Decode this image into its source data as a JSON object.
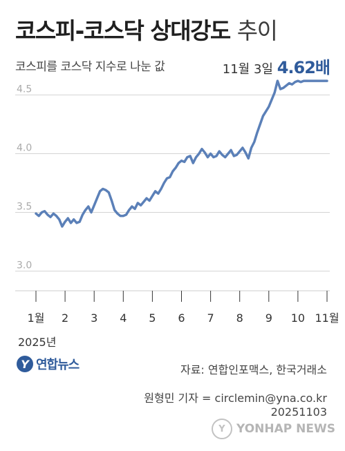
{
  "header": {
    "title_main": "코스피-코스닥 상대강도",
    "title_suffix": "추이",
    "subtitle": "코스피를 코스닥 지수로 나눈 값",
    "highlight_date": "11월 3일",
    "highlight_value": "4.62배"
  },
  "chart_data": {
    "type": "line",
    "title": "코스피-코스닥 상대강도 추이",
    "ylabel": "코스피를 코스닥 지수로 나눈 값",
    "ylim": [
      2.85,
      4.65
    ],
    "yticks": [
      3.0,
      3.5,
      4.0,
      4.5
    ],
    "ytick_labels": [
      "3.0",
      "3.5",
      "4.0",
      "4.5"
    ],
    "xticks": [
      1,
      2,
      3,
      4,
      5,
      6,
      7,
      8,
      9,
      10,
      11
    ],
    "xtick_labels": [
      "1월",
      "2",
      "3",
      "4",
      "5",
      "6",
      "7",
      "8",
      "9",
      "10",
      "11월"
    ],
    "year_label": "2025년",
    "grid": true,
    "annotation": "11월 3일 4.62배",
    "series": [
      {
        "color": "#5b80b8",
        "x": [
          1.0,
          1.1,
          1.2,
          1.3,
          1.4,
          1.5,
          1.6,
          1.7,
          1.8,
          1.9,
          2.0,
          2.1,
          2.2,
          2.3,
          2.4,
          2.5,
          2.6,
          2.7,
          2.8,
          2.9,
          3.0,
          3.1,
          3.2,
          3.3,
          3.4,
          3.5,
          3.6,
          3.7,
          3.8,
          3.9,
          4.0,
          4.1,
          4.2,
          4.3,
          4.4,
          4.5,
          4.6,
          4.7,
          4.8,
          4.9,
          5.0,
          5.1,
          5.2,
          5.3,
          5.4,
          5.5,
          5.6,
          5.7,
          5.8,
          5.9,
          6.0,
          6.1,
          6.2,
          6.3,
          6.4,
          6.5,
          6.6,
          6.7,
          6.8,
          6.9,
          7.0,
          7.1,
          7.2,
          7.3,
          7.4,
          7.5,
          7.6,
          7.7,
          7.8,
          7.9,
          8.0,
          8.1,
          8.2,
          8.3,
          8.4,
          8.5,
          8.6,
          8.7,
          8.8,
          8.9,
          9.0,
          9.1,
          9.2,
          9.3,
          9.4,
          9.5,
          9.6,
          9.7,
          9.8,
          9.9,
          10.0,
          10.1,
          10.2,
          10.3,
          10.4,
          10.5,
          10.6,
          10.7,
          10.8,
          10.9,
          11.0
        ],
        "values": [
          3.49,
          3.47,
          3.5,
          3.51,
          3.48,
          3.46,
          3.49,
          3.47,
          3.44,
          3.38,
          3.42,
          3.45,
          3.41,
          3.44,
          3.41,
          3.42,
          3.48,
          3.52,
          3.55,
          3.5,
          3.56,
          3.62,
          3.68,
          3.7,
          3.69,
          3.67,
          3.6,
          3.52,
          3.49,
          3.47,
          3.47,
          3.48,
          3.52,
          3.55,
          3.53,
          3.58,
          3.56,
          3.59,
          3.62,
          3.6,
          3.64,
          3.68,
          3.66,
          3.7,
          3.75,
          3.79,
          3.8,
          3.85,
          3.88,
          3.92,
          3.94,
          3.93,
          3.97,
          3.98,
          3.92,
          3.97,
          4.0,
          4.04,
          4.01,
          3.97,
          4.0,
          3.97,
          3.98,
          4.02,
          3.99,
          3.97,
          4.0,
          4.03,
          3.98,
          3.99,
          4.02,
          4.05,
          4.01,
          3.96,
          4.05,
          4.1,
          4.18,
          4.25,
          4.32,
          4.36,
          4.4,
          4.46,
          4.52,
          4.62,
          4.55,
          4.56,
          4.58,
          4.6,
          4.59,
          4.61,
          4.62,
          4.61,
          4.62,
          4.62,
          4.62,
          4.62,
          4.62,
          4.62,
          4.62,
          4.62,
          4.62
        ]
      }
    ]
  },
  "footer": {
    "logo_mark": "Y",
    "logo_text": "연합뉴스",
    "source": "자료: 연합인포맥스, 한국거래소",
    "reporter": "원형민 기자 = circlemin@yna.co.kr",
    "date_code": "20251103",
    "watermark": "YONHAP NEWS",
    "watermark_mark": "Y"
  }
}
